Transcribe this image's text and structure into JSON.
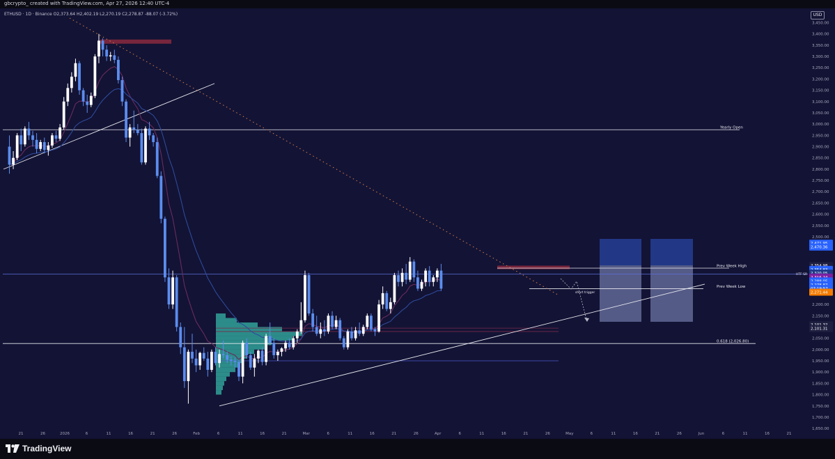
{
  "header": {
    "title": "gbcrypto_ created with TradingView.com, Apr 27, 2026 12:40 UTC-4"
  },
  "legend": {
    "text": "ETHUSD · 1D · Binance  O2,373.64  H2,402.19  L2,270.19  C2,278.87  -88.07 (-3.72%)"
  },
  "currency_button": "USD",
  "price_axis": {
    "ticks": [
      "3,450.00",
      "3,400.00",
      "3,350.00",
      "3,300.00",
      "3,250.00",
      "3,200.00",
      "3,150.00",
      "3,100.00",
      "3,050.00",
      "3,000.00",
      "2,950.00",
      "2,900.00",
      "2,850.00",
      "2,800.00",
      "2,750.00",
      "2,700.00",
      "2,650.00",
      "2,600.00",
      "2,550.00",
      "2,500.00",
      "2,200.00",
      "2,150.00",
      "2,100.00",
      "2,050.00",
      "2,000.00",
      "1,950.00",
      "1,900.00",
      "1,850.00",
      "1,800.00",
      "1,750.00",
      "1,700.00",
      "1,650.00"
    ],
    "tick_values": [
      3450,
      3400,
      3350,
      3300,
      3250,
      3200,
      3150,
      3100,
      3050,
      3000,
      2950,
      2900,
      2850,
      2800,
      2750,
      2700,
      2650,
      2600,
      2550,
      2500,
      2200,
      2150,
      2100,
      2050,
      2000,
      1950,
      1900,
      1850,
      1800,
      1750,
      1700,
      1650
    ],
    "badges": [
      {
        "text": "2,471.95",
        "value": 2471.95,
        "color": "#2962ff"
      },
      {
        "text": "2,470.36",
        "value": 2454.5,
        "color": "#2962ff"
      },
      {
        "text": "2,354.98",
        "value": 2373,
        "color": "#1e1e40"
      },
      {
        "text": "2,354.83",
        "value": 2355.5,
        "color": "#2962ff"
      },
      {
        "text": "2,320.05",
        "value": 2339,
        "color": "#1e3a8a"
      },
      {
        "text": "2,316.24",
        "value": 2321,
        "color": "#7b1fa2"
      },
      {
        "text": "2,288.05",
        "value": 2304,
        "color": "#2962ff"
      },
      {
        "text": "2,278.87",
        "value": 2287.5,
        "color": "#2962ff"
      },
      {
        "text": "07:19:57",
        "value": 2271,
        "color": "#2962ff"
      },
      {
        "text": "2,271.44",
        "value": 2254.5,
        "color": "#f57c00"
      },
      {
        "text": "2,101.32",
        "value": 2110,
        "color": "#1e1e40"
      },
      {
        "text": "2,101.31",
        "value": 2093,
        "color": "#1e1e40"
      }
    ]
  },
  "time_axis": {
    "labels": [
      "21",
      "26",
      "2026",
      "6",
      "11",
      "16",
      "21",
      "26",
      "Feb",
      "6",
      "11",
      "16",
      "21",
      "Mar",
      "6",
      "11",
      "16",
      "21",
      "26",
      "Apr",
      "6",
      "11",
      "16",
      "21",
      "26",
      "May",
      "6",
      "11",
      "16",
      "21",
      "26",
      "Jun",
      "6",
      "11",
      "16",
      "21"
    ]
  },
  "annotations": {
    "yearly_open": {
      "label": "Yearly Open",
      "price": 2975
    },
    "prev_week_high": {
      "label": "Prev Week High",
      "price": 2361
    },
    "htf_sr": {
      "label": "HTF SR",
      "price": 2335
    },
    "prev_week_low": {
      "label": "Prev Week Low",
      "price": 2270
    },
    "fib": {
      "label": "0.618 (2,026.80)",
      "price": 2026.8
    },
    "short_trigger": {
      "label": "short trigger"
    }
  },
  "brand": {
    "logo_text": "TradingView"
  },
  "colors": {
    "background": "#131335",
    "bull": "#ffffff",
    "bear": "#5b8def",
    "ema_fast": "#6a2c5e",
    "ema_slow": "#2d4a9a",
    "resistance_zone": "#8b2a3e",
    "volume_profile": "#35b6a6",
    "position_box": "#6f8fd8"
  },
  "chart_data": {
    "type": "candlestick",
    "symbol": "ETHUSD",
    "timeframe": "1D",
    "exchange": "Binance",
    "ylim": [
      1640,
      3480
    ],
    "x_range_days": [
      -58,
      70
    ],
    "note_x": "x values are days relative to Jan 1 2026 (0 = Jan 1)",
    "candles": [
      [
        -57,
        2900,
        2950,
        2780,
        2820
      ],
      [
        -56,
        2820,
        2880,
        2800,
        2850
      ],
      [
        -55,
        2850,
        2960,
        2840,
        2950
      ],
      [
        -54,
        2950,
        2980,
        2880,
        2910
      ],
      [
        -53,
        2910,
        2990,
        2900,
        2980
      ],
      [
        -52,
        2980,
        3010,
        2930,
        2950
      ],
      [
        -51,
        2950,
        2970,
        2900,
        2930
      ],
      [
        -50,
        2930,
        2960,
        2870,
        2890
      ],
      [
        -49,
        2890,
        2930,
        2880,
        2920
      ],
      [
        -48,
        2920,
        2940,
        2870,
        2885
      ],
      [
        -47,
        2885,
        2920,
        2860,
        2905
      ],
      [
        -46,
        2905,
        2960,
        2895,
        2950
      ],
      [
        -45,
        2950,
        2970,
        2920,
        2935
      ],
      [
        -44,
        2935,
        3000,
        2925,
        2985
      ],
      [
        -43,
        2985,
        3120,
        2975,
        3100
      ],
      [
        -42,
        3100,
        3180,
        3080,
        3160
      ],
      [
        -41,
        3160,
        3230,
        3140,
        3210
      ],
      [
        -40,
        3210,
        3290,
        3190,
        3270
      ],
      [
        -39,
        3270,
        3280,
        3130,
        3150
      ],
      [
        -38,
        3150,
        3160,
        3080,
        3100
      ],
      [
        -37,
        3100,
        3130,
        3050,
        3085
      ],
      [
        -36,
        3085,
        3140,
        3075,
        3125
      ],
      [
        -35,
        3125,
        3310,
        3115,
        3300
      ],
      [
        -34,
        3300,
        3400,
        3270,
        3370
      ],
      [
        -33,
        3370,
        3380,
        3300,
        3330
      ],
      [
        -32,
        3330,
        3350,
        3280,
        3300
      ],
      [
        -31,
        3300,
        3320,
        3280,
        3305
      ],
      [
        -30,
        3305,
        3330,
        3270,
        3285
      ],
      [
        -29,
        3285,
        3300,
        3180,
        3195
      ],
      [
        -28,
        3195,
        3210,
        3080,
        3100
      ],
      [
        -27,
        3100,
        3110,
        2920,
        2940
      ],
      [
        -26,
        2940,
        3000,
        2900,
        2985
      ],
      [
        -25,
        2985,
        3060,
        2960,
        2975
      ],
      [
        -24,
        2975,
        3000,
        2950,
        2960
      ],
      [
        -23,
        2960,
        2980,
        2820,
        2830
      ],
      [
        -22,
        2830,
        2990,
        2820,
        2980
      ],
      [
        -21,
        2980,
        3010,
        2930,
        2950
      ],
      [
        -20,
        2950,
        2960,
        2900,
        2920
      ],
      [
        -19,
        2920,
        2940,
        2760,
        2770
      ],
      [
        -18,
        2770,
        2790,
        2560,
        2580
      ],
      [
        -17,
        2580,
        2590,
        2300,
        2320
      ],
      [
        -16,
        2320,
        2360,
        2180,
        2200
      ],
      [
        -15,
        2200,
        2350,
        2180,
        2320
      ],
      [
        -14,
        2320,
        2330,
        2080,
        2100
      ],
      [
        -13,
        2100,
        2120,
        1980,
        2010
      ],
      [
        -12,
        2010,
        2100,
        1830,
        1860
      ],
      [
        -11,
        1860,
        2000,
        1760,
        1990
      ],
      [
        -10,
        1990,
        2070,
        1940,
        1960
      ],
      [
        -9,
        1960,
        2000,
        1900,
        1930
      ],
      [
        -8,
        1930,
        1990,
        1910,
        1985
      ],
      [
        -7,
        1985,
        2010,
        1950,
        1960
      ],
      [
        -6,
        1960,
        1990,
        1880,
        1910
      ],
      [
        -5,
        1910,
        2000,
        1900,
        1990
      ],
      [
        -4,
        1990,
        2010,
        1930,
        1940
      ],
      [
        -3,
        1940,
        2000,
        1920,
        1980
      ],
      [
        -2,
        1980,
        2040,
        1960,
        1975
      ],
      [
        -1,
        1975,
        1990,
        1940,
        1955
      ],
      [
        0,
        1955,
        1970,
        1930,
        1950
      ],
      [
        1,
        1950,
        1965,
        1920,
        1945
      ],
      [
        2,
        1945,
        1955,
        1860,
        1880
      ],
      [
        3,
        1880,
        2040,
        1850,
        2030
      ],
      [
        4,
        2030,
        2050,
        1960,
        1975
      ],
      [
        5,
        1975,
        1990,
        1910,
        1920
      ],
      [
        6,
        1920,
        1980,
        1880,
        1960
      ],
      [
        7,
        1960,
        2000,
        1940,
        1995
      ],
      [
        8,
        1995,
        2010,
        1930,
        1945
      ],
      [
        9,
        1945,
        2070,
        1930,
        2060
      ],
      [
        10,
        2060,
        2120,
        2020,
        2030
      ],
      [
        11,
        2030,
        2050,
        1960,
        1975
      ],
      [
        12,
        1975,
        2000,
        1950,
        1990
      ],
      [
        13,
        1990,
        2010,
        1970,
        2005
      ],
      [
        14,
        2005,
        2040,
        1990,
        2030
      ],
      [
        15,
        2030,
        2050,
        2000,
        2010
      ],
      [
        16,
        2010,
        2060,
        2000,
        2050
      ],
      [
        17,
        2050,
        2090,
        2030,
        2080
      ],
      [
        18,
        2080,
        2210,
        2070,
        2130
      ],
      [
        19,
        2130,
        2350,
        2120,
        2330
      ],
      [
        20,
        2330,
        2340,
        2150,
        2160
      ],
      [
        21,
        2160,
        2180,
        2080,
        2100
      ],
      [
        22,
        2100,
        2150,
        2060,
        2070
      ],
      [
        23,
        2070,
        2120,
        2050,
        2090
      ],
      [
        24,
        2090,
        2130,
        2060,
        2080
      ],
      [
        25,
        2080,
        2160,
        2070,
        2150
      ],
      [
        26,
        2150,
        2170,
        2090,
        2100
      ],
      [
        27,
        2100,
        2150,
        2090,
        2130
      ],
      [
        28,
        2130,
        2140,
        2040,
        2050
      ],
      [
        29,
        2050,
        2060,
        2000,
        2010
      ],
      [
        30,
        2010,
        2090,
        2000,
        2080
      ],
      [
        31,
        2080,
        2100,
        2040,
        2050
      ],
      [
        32,
        2050,
        2100,
        2040,
        2085
      ],
      [
        33,
        2085,
        2120,
        2060,
        2070
      ],
      [
        34,
        2070,
        2110,
        2060,
        2100
      ],
      [
        35,
        2100,
        2160,
        2090,
        2150
      ],
      [
        36,
        2150,
        2160,
        2080,
        2090
      ],
      [
        37,
        2090,
        2100,
        2060,
        2080
      ],
      [
        38,
        2080,
        2220,
        2075,
        2200
      ],
      [
        39,
        2200,
        2280,
        2180,
        2250
      ],
      [
        40,
        2250,
        2260,
        2170,
        2180
      ],
      [
        41,
        2180,
        2230,
        2160,
        2210
      ],
      [
        42,
        2210,
        2340,
        2200,
        2330
      ],
      [
        43,
        2330,
        2350,
        2280,
        2300
      ],
      [
        44,
        2300,
        2360,
        2280,
        2340
      ],
      [
        45,
        2340,
        2380,
        2290,
        2310
      ],
      [
        46,
        2310,
        2410,
        2300,
        2390
      ],
      [
        47,
        2390,
        2400,
        2300,
        2320
      ],
      [
        48,
        2320,
        2350,
        2260,
        2270
      ],
      [
        49,
        2270,
        2310,
        2260,
        2300
      ],
      [
        50,
        2300,
        2360,
        2280,
        2350
      ],
      [
        51,
        2350,
        2370,
        2280,
        2300
      ],
      [
        52,
        2300,
        2330,
        2280,
        2320
      ],
      [
        53,
        2320,
        2360,
        2300,
        2350
      ],
      [
        54,
        2350,
        2380,
        2260,
        2270
      ]
    ]
  }
}
